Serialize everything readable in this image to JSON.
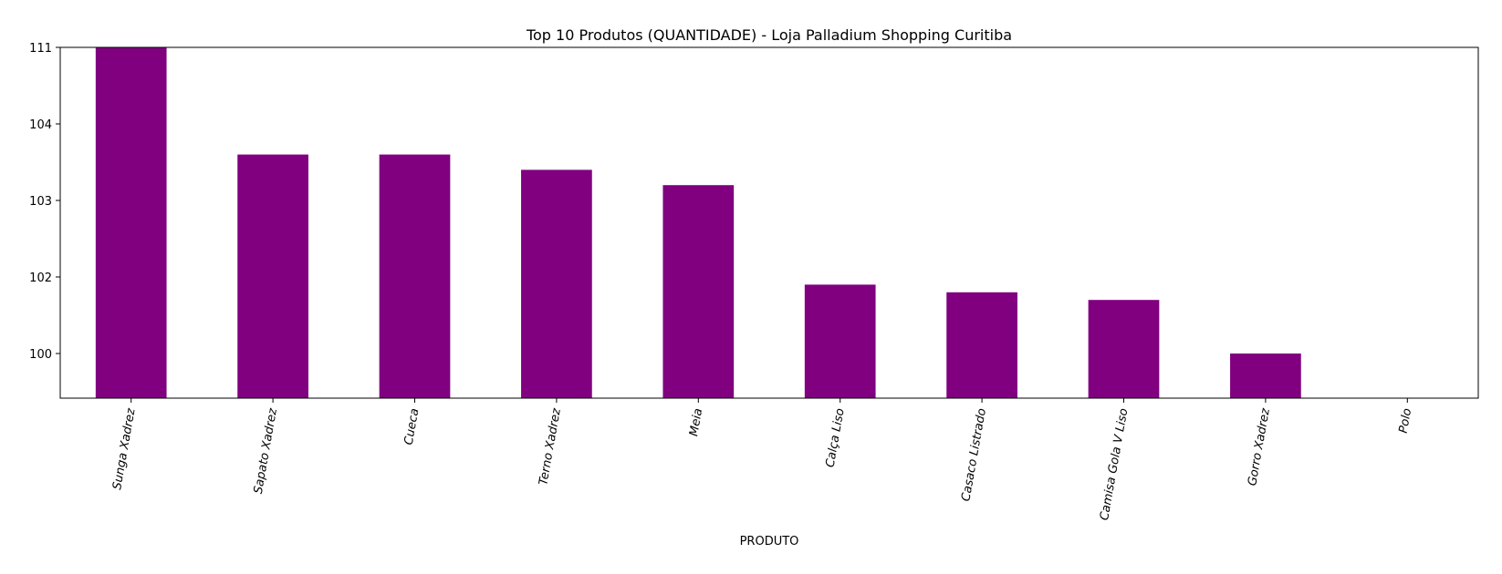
{
  "chart_data": {
    "type": "bar",
    "title": "Top 10 Produtos (QUANTIDADE) - Loja Palladium Shopping Curitiba",
    "xlabel": "PRODUTO",
    "ylabel": "",
    "categories": [
      "Sunga Xadrez",
      "Sapato Xadrez",
      "Cueca",
      "Terno Xadrez",
      "Meia",
      "Calça Liso",
      "Casaco Listrado",
      "Camisa Gola V Liso",
      "Gorro Xadrez",
      "Polo"
    ],
    "values": [
      111,
      103.6,
      103.6,
      103.4,
      103.2,
      101.8,
      101.6,
      101.4,
      100,
      99
    ],
    "yticks": [
      100,
      102,
      103,
      104,
      111
    ],
    "ytick_labels": [
      "100",
      "102",
      "103",
      "104",
      "111"
    ],
    "ylim": [
      99.4,
      111
    ],
    "bar_color": "#800080",
    "grid": false,
    "xtick_rotation_deg": 80
  }
}
